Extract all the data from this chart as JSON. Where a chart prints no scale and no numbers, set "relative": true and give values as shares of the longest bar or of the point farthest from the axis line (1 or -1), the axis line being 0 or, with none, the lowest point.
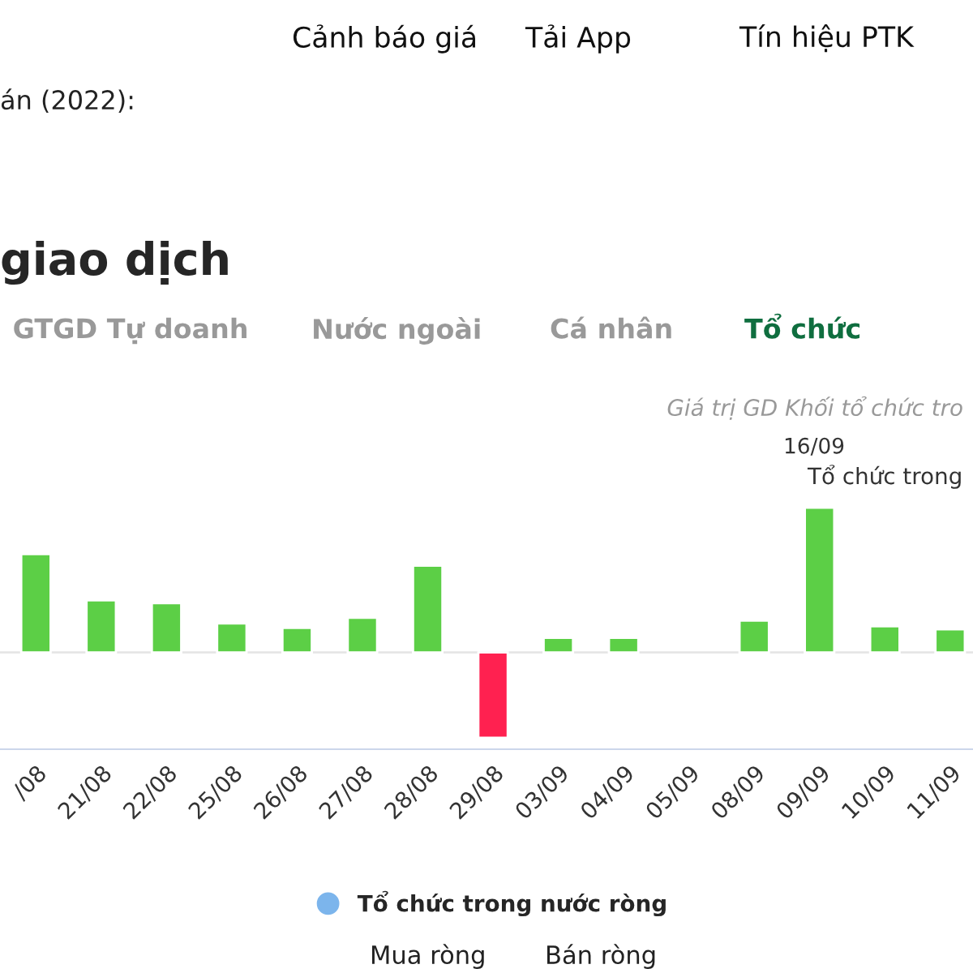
{
  "chart_data": {
    "type": "bar",
    "title": "giao dịch",
    "subtitle": "Giá trị GD Khối tổ chức tro",
    "annotations": [
      "Cảnh báo giá",
      "Tải App",
      "Tín hiệu PTK",
      "án (2022):",
      "GTGD Tự doanh",
      "Nước ngoài",
      "Cá nhân",
      "Tổ chức",
      "16/09",
      "Tổ chức trong",
      "Mua ròng",
      "Bán ròng"
    ],
    "categories": [
      "/08",
      "21/08",
      "22/08",
      "25/08",
      "26/08",
      "27/08",
      "28/08",
      "29/08",
      "03/09",
      "04/09",
      "05/09",
      "08/09",
      "09/09",
      "10/09",
      "11/09"
    ],
    "relative": true,
    "series": [
      {
        "name": "Tổ chức trong nước ròng",
        "color": "#7cb5ec",
        "values": [
          0.68,
          0.36,
          0.34,
          0.2,
          0.17,
          0.24,
          0.6,
          -0.59,
          0.1,
          0.1,
          null,
          0.22,
          1,
          0.18,
          0.16
        ],
        "colors": [
          "#5ccf46",
          "#5ccf46",
          "#5ccf46",
          "#5ccf46",
          "#5ccf46",
          "#5ccf46",
          "#5ccf46",
          "#ff2150",
          "#5ccf46",
          "#5ccf46",
          "#5ccf46",
          "#5ccf46",
          "#5ccf46",
          "#5ccf46",
          "#5ccf46"
        ]
      }
    ],
    "legend": "bottom"
  }
}
